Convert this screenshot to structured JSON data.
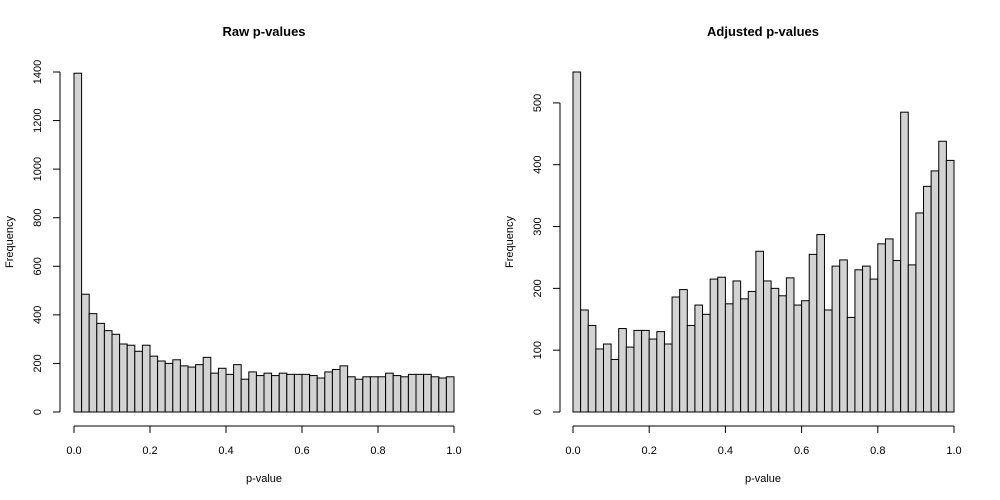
{
  "chart_data": [
    {
      "type": "bar",
      "title": "Raw p-values",
      "xlabel": "p-value",
      "ylabel": "Frequency",
      "xlim": [
        0,
        1
      ],
      "ylim": [
        0,
        1400
      ],
      "xticks": [
        "0.0",
        "0.2",
        "0.4",
        "0.6",
        "0.8",
        "1.0"
      ],
      "xtick_values": [
        0,
        0.2,
        0.4,
        0.6,
        0.8,
        1.0
      ],
      "yticks": [
        "0",
        "200",
        "400",
        "600",
        "800",
        "1000",
        "1200",
        "1400"
      ],
      "ytick_values": [
        0,
        200,
        400,
        600,
        800,
        1000,
        1200,
        1400
      ],
      "bin_width": 0.02,
      "bar_color": "#d3d3d3",
      "grid": false,
      "values": [
        1395,
        485,
        405,
        365,
        335,
        320,
        280,
        275,
        250,
        275,
        230,
        210,
        200,
        215,
        190,
        185,
        195,
        225,
        160,
        180,
        155,
        195,
        135,
        165,
        150,
        160,
        150,
        160,
        155,
        155,
        155,
        150,
        140,
        165,
        175,
        190,
        145,
        135,
        145,
        145,
        145,
        160,
        150,
        145,
        155,
        155,
        155,
        145,
        140,
        145
      ]
    },
    {
      "type": "bar",
      "title": "Adjusted p-values",
      "xlabel": "p-value",
      "ylabel": "Frequency",
      "xlim": [
        0,
        1
      ],
      "ylim": [
        0,
        550
      ],
      "xticks": [
        "0.0",
        "0.2",
        "0.4",
        "0.6",
        "0.8",
        "1.0"
      ],
      "xtick_values": [
        0,
        0.2,
        0.4,
        0.6,
        0.8,
        1.0
      ],
      "yticks": [
        "0",
        "100",
        "200",
        "300",
        "400",
        "500"
      ],
      "ytick_values": [
        0,
        100,
        200,
        300,
        400,
        500
      ],
      "bin_width": 0.02,
      "bar_color": "#d3d3d3",
      "grid": false,
      "values": [
        550,
        165,
        140,
        102,
        110,
        85,
        135,
        105,
        132,
        132,
        118,
        130,
        110,
        186,
        198,
        140,
        173,
        158,
        215,
        218,
        175,
        212,
        183,
        195,
        260,
        212,
        200,
        188,
        217,
        173,
        180,
        255,
        287,
        165,
        236,
        246,
        153,
        230,
        236,
        215,
        272,
        280,
        245,
        485,
        238,
        322,
        365,
        390,
        438,
        407
      ]
    }
  ]
}
